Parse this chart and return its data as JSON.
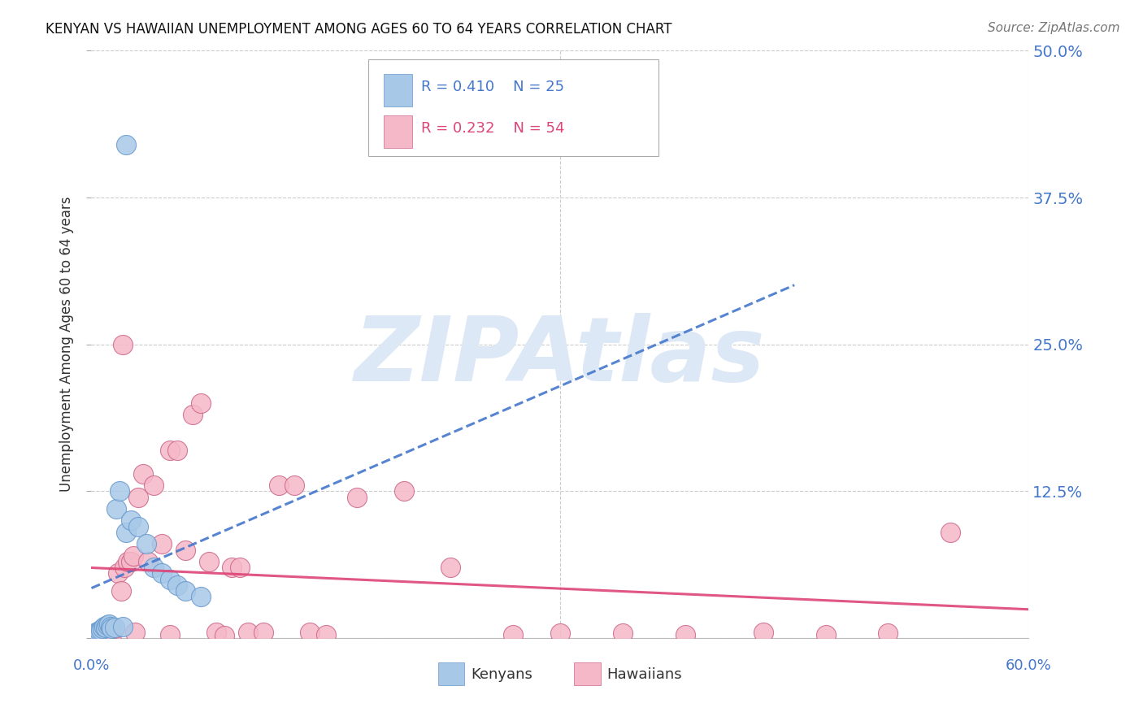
{
  "title": "KENYAN VS HAWAIIAN UNEMPLOYMENT AMONG AGES 60 TO 64 YEARS CORRELATION CHART",
  "source": "Source: ZipAtlas.com",
  "ylabel": "Unemployment Among Ages 60 to 64 years",
  "xlim": [
    0,
    0.6
  ],
  "ylim": [
    0,
    0.5
  ],
  "yticks": [
    0.0,
    0.125,
    0.25,
    0.375,
    0.5
  ],
  "ytick_labels": [
    "",
    "12.5%",
    "25.0%",
    "37.5%",
    "50.0%"
  ],
  "grid_color": "#cccccc",
  "bg_color": "#ffffff",
  "kenyan_color": "#a8c8e8",
  "kenyan_edge": "#6699cc",
  "hawaiian_color": "#f5b8c8",
  "hawaiian_edge": "#cc6688",
  "kenyan_line_color": "#4477cc",
  "hawaiian_line_color": "#dd4477",
  "kenyan_R": 0.41,
  "kenyan_N": 25,
  "hawaiian_R": 0.232,
  "hawaiian_N": 54,
  "watermark": "ZIPAtlas",
  "watermark_color": "#dce8f5",
  "kenyan_x": [
    0.003,
    0.005,
    0.006,
    0.007,
    0.008,
    0.009,
    0.01,
    0.011,
    0.012,
    0.013,
    0.015,
    0.016,
    0.018,
    0.02,
    0.022,
    0.025,
    0.03,
    0.035,
    0.04,
    0.045,
    0.05,
    0.055,
    0.06,
    0.07,
    0.022
  ],
  "kenyan_y": [
    0.005,
    0.006,
    0.007,
    0.008,
    0.01,
    0.009,
    0.011,
    0.012,
    0.01,
    0.008,
    0.009,
    0.11,
    0.125,
    0.01,
    0.09,
    0.1,
    0.095,
    0.08,
    0.06,
    0.055,
    0.05,
    0.045,
    0.04,
    0.035,
    0.42
  ],
  "hawaiian_x": [
    0.002,
    0.004,
    0.005,
    0.006,
    0.007,
    0.008,
    0.009,
    0.01,
    0.011,
    0.012,
    0.013,
    0.015,
    0.017,
    0.019,
    0.021,
    0.023,
    0.025,
    0.027,
    0.03,
    0.033,
    0.036,
    0.04,
    0.045,
    0.05,
    0.055,
    0.06,
    0.065,
    0.07,
    0.075,
    0.08,
    0.085,
    0.09,
    0.095,
    0.1,
    0.11,
    0.12,
    0.13,
    0.14,
    0.15,
    0.17,
    0.2,
    0.23,
    0.27,
    0.3,
    0.34,
    0.38,
    0.43,
    0.47,
    0.51,
    0.55,
    0.01,
    0.02,
    0.028,
    0.05
  ],
  "hawaiian_y": [
    0.002,
    0.003,
    0.004,
    0.005,
    0.003,
    0.005,
    0.006,
    0.004,
    0.007,
    0.005,
    0.003,
    0.008,
    0.055,
    0.04,
    0.06,
    0.065,
    0.065,
    0.07,
    0.12,
    0.14,
    0.065,
    0.13,
    0.08,
    0.16,
    0.16,
    0.075,
    0.19,
    0.2,
    0.065,
    0.005,
    0.002,
    0.06,
    0.06,
    0.005,
    0.005,
    0.13,
    0.13,
    0.005,
    0.003,
    0.12,
    0.125,
    0.06,
    0.003,
    0.004,
    0.004,
    0.003,
    0.005,
    0.003,
    0.004,
    0.09,
    0.006,
    0.25,
    0.005,
    0.003
  ]
}
